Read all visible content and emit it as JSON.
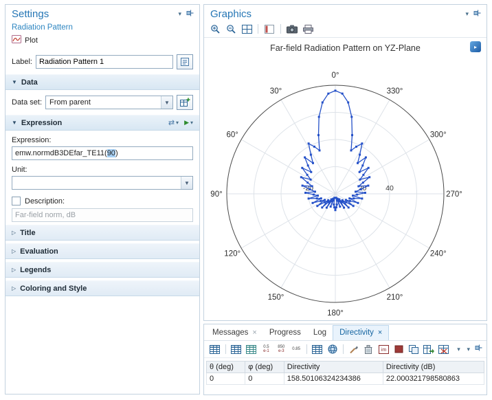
{
  "settings": {
    "title": "Settings",
    "breadcrumb": "Radiation Pattern",
    "type_label": "Plot",
    "label_label": "Label:",
    "label_value": "Radiation Pattern 1",
    "data_section": {
      "title": "Data",
      "dataset_label": "Data set:",
      "dataset_value": "From parent"
    },
    "expression_section": {
      "title": "Expression",
      "expression_label": "Expression:",
      "expression_prefix": "emw.normdB3DEfar_TE11(",
      "expression_selected": "90",
      "expression_suffix": ")",
      "unit_label": "Unit:",
      "unit_value": "",
      "description_label": "Description:",
      "description_value": "Far-field norm, dB"
    },
    "collapsed_sections": [
      "Title",
      "Evaluation",
      "Legends",
      "Coloring and Style"
    ]
  },
  "graphics": {
    "title": "Graphics",
    "plot_title": "Far-field Radiation Pattern on YZ-Plane",
    "toolbar": [
      "zoom-in-icon",
      "zoom-out-icon",
      "zoom-extents-icon",
      "sep",
      "default-view-icon",
      "sep",
      "image-snapshot-icon",
      "print-icon"
    ]
  },
  "bottom": {
    "tabs": [
      {
        "label": "Messages",
        "closable": true,
        "active": false
      },
      {
        "label": "Progress",
        "closable": false,
        "active": false
      },
      {
        "label": "Log",
        "closable": false,
        "active": false
      },
      {
        "label": "Directivity",
        "closable": true,
        "active": true
      }
    ],
    "toolbar": [
      "table-settings-icon",
      "sep",
      "full-precision-icon",
      "display-precision-icon",
      "notation-0-5-e-1-icon",
      "notation-850-e-3-icon",
      "notation-0-85-icon",
      "sep",
      "table-icon",
      "sphere-plot-icon",
      "sep",
      "paintbrush-icon",
      "delete-icon",
      "image-table-icon",
      "color-table-icon",
      "copy-table-icon",
      "export-table-icon",
      "table-x-icon",
      "menu-caret-icon"
    ],
    "table": {
      "headers": [
        "θ (deg)",
        "φ (deg)",
        "Directivity",
        "Directivity (dB)"
      ],
      "rows": [
        [
          "0",
          "0",
          "158.50106324234386",
          "22.000321798580863"
        ]
      ]
    }
  },
  "chart_data": {
    "type": "line",
    "subtype": "polar",
    "title": "Far-field Radiation Pattern on YZ-Plane",
    "angle_unit": "deg",
    "angle_zero": "top",
    "angle_direction": "counterclockwise",
    "angle_ticks": [
      "0°",
      "30°",
      "60°",
      "90°",
      "120°",
      "150°",
      "180°",
      "210°",
      "240°",
      "270°",
      "300°",
      "330°"
    ],
    "radial_ticks": [
      -20,
      20,
      40
    ],
    "radial_range": [
      0,
      80
    ],
    "grid": true,
    "line_color": "#2450c8",
    "marker": "square",
    "theta_step_deg": 4,
    "symmetric_about_0_180": true,
    "values_half": [
      76,
      74,
      68,
      58,
      45,
      34,
      38,
      42,
      34,
      28,
      35,
      29,
      24,
      31,
      25,
      21,
      28,
      22,
      18,
      25,
      19,
      15,
      22,
      16,
      13,
      20,
      14,
      11,
      18,
      12,
      9,
      16,
      10,
      7,
      14,
      8,
      5,
      12,
      6,
      4,
      10,
      5,
      3,
      8,
      10,
      12
    ]
  }
}
